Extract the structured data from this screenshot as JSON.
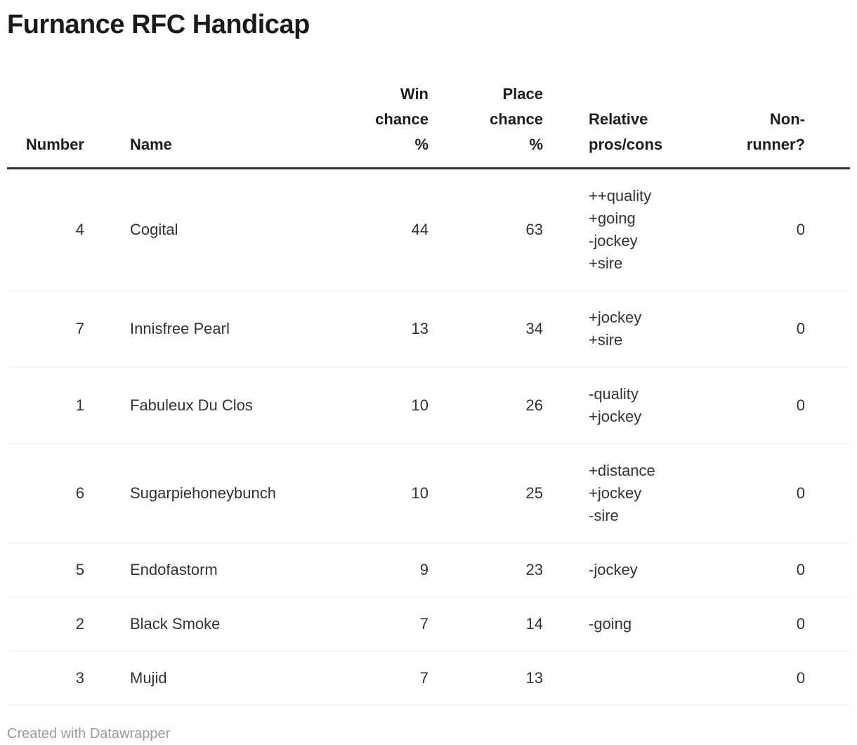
{
  "chart_data": {
    "type": "table",
    "title": "Furnance RFC Handicap",
    "columns": [
      {
        "key": "number",
        "label": "Number",
        "label_lines": [
          "Number"
        ],
        "align": "right"
      },
      {
        "key": "name",
        "label": "Name",
        "label_lines": [
          "Name"
        ],
        "align": "left"
      },
      {
        "key": "win_chance_pct",
        "label": "Win chance %",
        "label_lines": [
          "Win",
          "chance",
          "%"
        ],
        "align": "right"
      },
      {
        "key": "place_chance_pct",
        "label": "Place chance %",
        "label_lines": [
          "Place",
          "chance",
          "%"
        ],
        "align": "right"
      },
      {
        "key": "pros_cons",
        "label": "Relative pros/cons",
        "label_lines": [
          "Relative",
          "pros/cons"
        ],
        "align": "left"
      },
      {
        "key": "non_runner",
        "label": "Non-runner?",
        "label_lines": [
          "Non-",
          "runner?"
        ],
        "align": "right"
      }
    ],
    "rows": [
      {
        "number": 4,
        "name": "Cogital",
        "win_chance_pct": 44,
        "place_chance_pct": 63,
        "pros_cons": [
          "++quality",
          "+going",
          "-jockey",
          "+sire"
        ],
        "non_runner": 0
      },
      {
        "number": 7,
        "name": "Innisfree Pearl",
        "win_chance_pct": 13,
        "place_chance_pct": 34,
        "pros_cons": [
          "+jockey",
          "+sire"
        ],
        "non_runner": 0
      },
      {
        "number": 1,
        "name": "Fabuleux Du Clos",
        "win_chance_pct": 10,
        "place_chance_pct": 26,
        "pros_cons": [
          "-quality",
          "+jockey"
        ],
        "non_runner": 0
      },
      {
        "number": 6,
        "name": "Sugarpiehoneybunch",
        "win_chance_pct": 10,
        "place_chance_pct": 25,
        "pros_cons": [
          "+distance",
          "+jockey",
          "-sire"
        ],
        "non_runner": 0
      },
      {
        "number": 5,
        "name": "Endofastorm",
        "win_chance_pct": 9,
        "place_chance_pct": 23,
        "pros_cons": [
          "-jockey"
        ],
        "non_runner": 0
      },
      {
        "number": 2,
        "name": "Black Smoke",
        "win_chance_pct": 7,
        "place_chance_pct": 14,
        "pros_cons": [
          "-going"
        ],
        "non_runner": 0
      },
      {
        "number": 3,
        "name": "Mujid",
        "win_chance_pct": 7,
        "place_chance_pct": 13,
        "pros_cons": [],
        "non_runner": 0
      }
    ],
    "layout": {
      "grid": "horizontal-row-separators",
      "header_rule": "thick"
    }
  },
  "footer": {
    "attribution": "Created with Datawrapper"
  },
  "colors": {
    "title": "#1a1a1a",
    "header_text": "#1d1d1d",
    "body_text": "#333333",
    "header_rule": "#333333",
    "row_separator": "#ebebeb",
    "footer_text": "#9b9b9b",
    "background": "#ffffff"
  }
}
